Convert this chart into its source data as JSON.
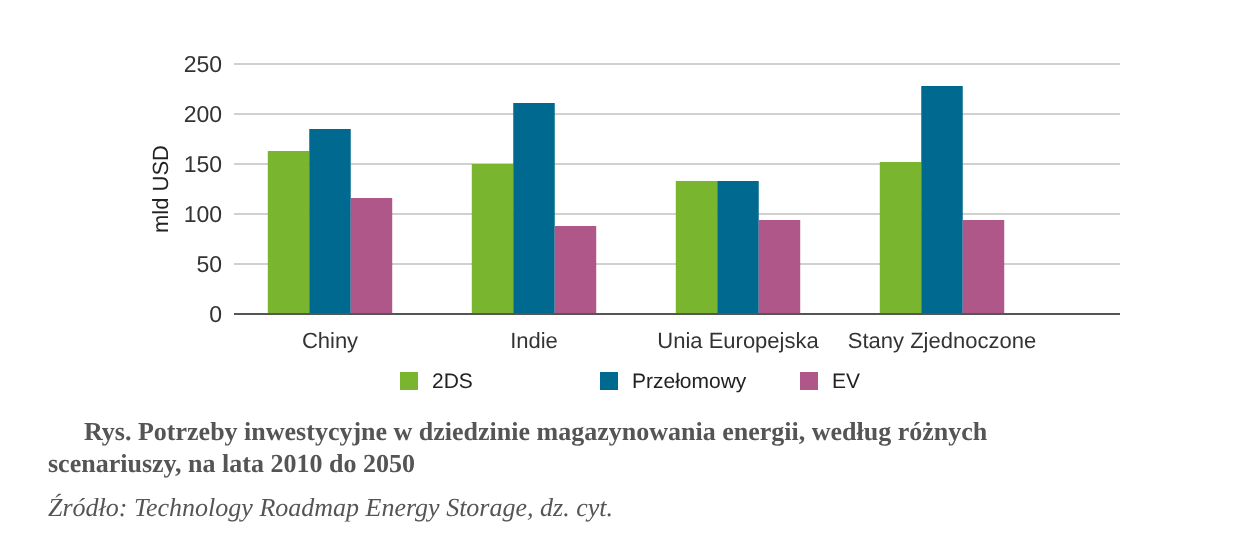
{
  "chart_data": {
    "type": "bar",
    "ylabel": "mld USD",
    "categories": [
      "Chiny",
      "Indie",
      "Unia Europejska",
      "Stany Zjednoczone"
    ],
    "series": [
      {
        "name": "2DS",
        "color": "#7ab52f",
        "values": [
          163,
          150,
          133,
          152
        ]
      },
      {
        "name": "Przełomowy",
        "color": "#006990",
        "values": [
          185,
          211,
          133,
          228
        ]
      },
      {
        "name": "EV",
        "color": "#ae5788",
        "values": [
          116,
          88,
          94,
          94
        ]
      }
    ],
    "ylim": [
      0,
      250
    ],
    "yticks": [
      0,
      50,
      100,
      150,
      200,
      250
    ],
    "grid": "y",
    "legend": "bottom",
    "annotations": [
      "Rys. Potrzeby inwestycyjne w dziedzinie magazynowania energii, według różnych scenariuszy, na lata 2010 do 2050",
      "Źródło: Technology Roadmap Energy Storage, dz. cyt."
    ]
  }
}
